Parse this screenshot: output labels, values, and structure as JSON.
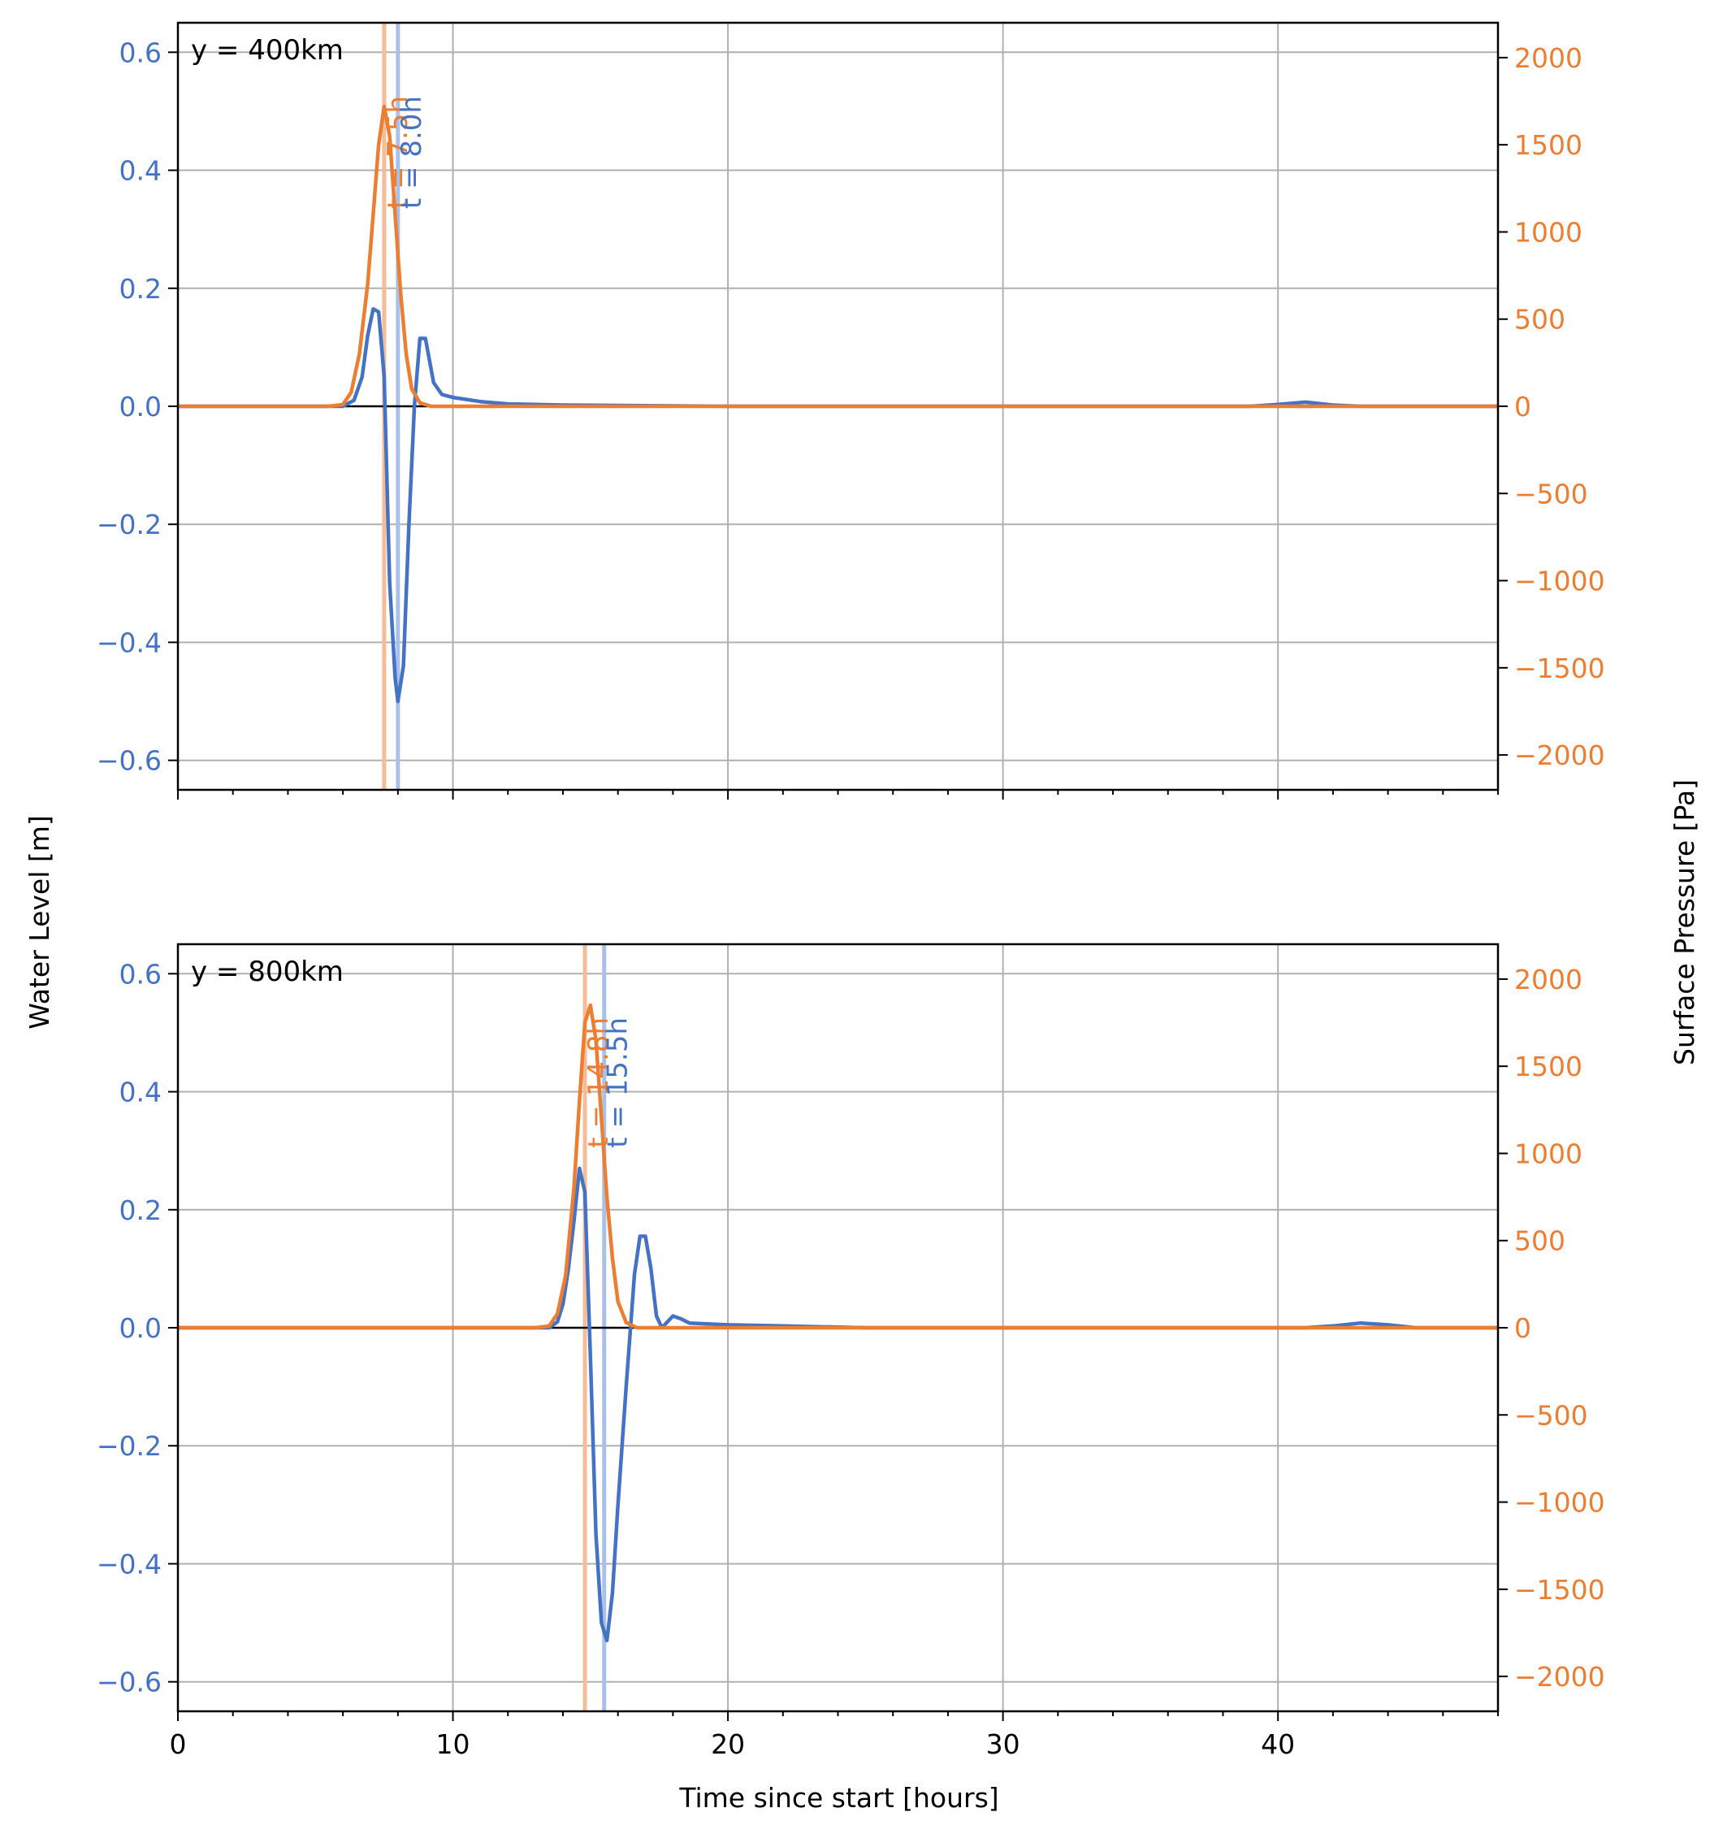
{
  "colors": {
    "water_level": "#4472c4",
    "surface_pressure": "#ed7d31",
    "water_level_vline": "#a9c0e8",
    "surface_pressure_vline": "#f5bc98",
    "grid": "#b0b0b0"
  },
  "chart_data": [
    {
      "type": "line",
      "panel_label": "y = 400km",
      "xlabel": "",
      "ylabel": "",
      "ylabel_right": "",
      "xlim": [
        0,
        48
      ],
      "ylim": [
        -0.65,
        0.65
      ],
      "ylim_right": [
        -2200,
        2200
      ],
      "x_ticks": [
        0,
        10,
        20,
        30,
        40
      ],
      "x_tick_labels": [],
      "y_ticks": [
        -0.6,
        -0.4,
        -0.2,
        0.0,
        0.2,
        0.4,
        0.6
      ],
      "y_tick_labels": [
        "−0.6",
        "−0.4",
        "−0.2",
        "0.0",
        "0.2",
        "0.4",
        "0.6"
      ],
      "y_right_ticks": [
        -2000,
        -1500,
        -1000,
        -500,
        0,
        500,
        1000,
        1500,
        2000
      ],
      "y_right_tick_labels": [
        "−2000",
        "−1500",
        "−1000",
        "−500",
        "0",
        "500",
        "1000",
        "1500",
        "2000"
      ],
      "grid": true,
      "vlines": [
        {
          "x": 7.5,
          "label": "t = 7.5h",
          "axis": "right"
        },
        {
          "x": 8.0,
          "label": "t = 8.0h",
          "axis": "left"
        }
      ],
      "series": [
        {
          "axis": "left",
          "x": [
            0,
            5,
            6.0,
            6.4,
            6.7,
            6.9,
            7.1,
            7.3,
            7.5,
            7.7,
            7.9,
            8.0,
            8.2,
            8.4,
            8.6,
            8.8,
            9.0,
            9.3,
            9.6,
            10.0,
            11.0,
            12.0,
            14.0,
            20.0,
            39.0,
            40.0,
            41.0,
            42.0,
            43.0,
            48.0
          ],
          "values": [
            0,
            0,
            0.0,
            0.01,
            0.05,
            0.12,
            0.165,
            0.16,
            0.05,
            -0.3,
            -0.46,
            -0.5,
            -0.44,
            -0.2,
            0.0,
            0.115,
            0.115,
            0.04,
            0.02,
            0.015,
            0.008,
            0.004,
            0.002,
            0.0,
            0.0,
            0.003,
            0.007,
            0.002,
            0.0,
            0.0
          ]
        },
        {
          "axis": "right",
          "x": [
            0,
            5.5,
            6.0,
            6.3,
            6.6,
            6.9,
            7.1,
            7.3,
            7.5,
            7.7,
            7.9,
            8.1,
            8.3,
            8.5,
            8.8,
            9.2,
            48.0
          ],
          "values": [
            0,
            0,
            10,
            80,
            300,
            700,
            1100,
            1500,
            1720,
            1550,
            1100,
            650,
            300,
            100,
            20,
            0,
            0
          ]
        }
      ]
    },
    {
      "type": "line",
      "panel_label": "y = 800km",
      "xlabel": "Time since start [hours]",
      "ylabel": "Water Level [m]",
      "ylabel_right": "Surface Pressure [Pa]",
      "xlim": [
        0,
        48
      ],
      "ylim": [
        -0.65,
        0.65
      ],
      "ylim_right": [
        -2200,
        2200
      ],
      "x_ticks": [
        0,
        10,
        20,
        30,
        40
      ],
      "x_tick_labels": [
        "0",
        "10",
        "20",
        "30",
        "40"
      ],
      "y_ticks": [
        -0.6,
        -0.4,
        -0.2,
        0.0,
        0.2,
        0.4,
        0.6
      ],
      "y_tick_labels": [
        "−0.6",
        "−0.4",
        "−0.2",
        "0.0",
        "0.2",
        "0.4",
        "0.6"
      ],
      "y_right_ticks": [
        -2000,
        -1500,
        -1000,
        -500,
        0,
        500,
        1000,
        1500,
        2000
      ],
      "y_right_tick_labels": [
        "−2000",
        "−1500",
        "−1000",
        "−500",
        "0",
        "500",
        "1000",
        "1500",
        "2000"
      ],
      "grid": true,
      "vlines": [
        {
          "x": 14.8,
          "label": "t = 14.8h",
          "axis": "right"
        },
        {
          "x": 15.5,
          "label": "t = 15.5h",
          "axis": "left"
        }
      ],
      "series": [
        {
          "axis": "left",
          "x": [
            0,
            13.0,
            13.5,
            13.8,
            14.0,
            14.2,
            14.4,
            14.6,
            14.8,
            15.0,
            15.2,
            15.4,
            15.6,
            15.8,
            16.0,
            16.3,
            16.6,
            16.8,
            17.0,
            17.2,
            17.4,
            17.6,
            17.8,
            18.0,
            18.3,
            18.6,
            19.0,
            20.0,
            22.0,
            25.0,
            41.0,
            42.0,
            43.0,
            44.0,
            45.0,
            48.0
          ],
          "values": [
            0,
            0,
            0.0,
            0.01,
            0.04,
            0.1,
            0.18,
            0.27,
            0.23,
            -0.05,
            -0.35,
            -0.5,
            -0.53,
            -0.45,
            -0.3,
            -0.1,
            0.09,
            0.155,
            0.155,
            0.1,
            0.02,
            0.0,
            0.01,
            0.02,
            0.015,
            0.008,
            0.007,
            0.005,
            0.003,
            0.0,
            0.0,
            0.003,
            0.008,
            0.005,
            0.0,
            0.0
          ]
        },
        {
          "axis": "right",
          "x": [
            0,
            13.0,
            13.5,
            13.8,
            14.1,
            14.4,
            14.6,
            14.8,
            15.0,
            15.2,
            15.4,
            15.6,
            15.8,
            16.0,
            16.3,
            16.7,
            48.0
          ],
          "values": [
            0,
            0,
            10,
            80,
            300,
            800,
            1300,
            1750,
            1850,
            1650,
            1200,
            750,
            400,
            150,
            30,
            0,
            0
          ]
        }
      ]
    }
  ]
}
